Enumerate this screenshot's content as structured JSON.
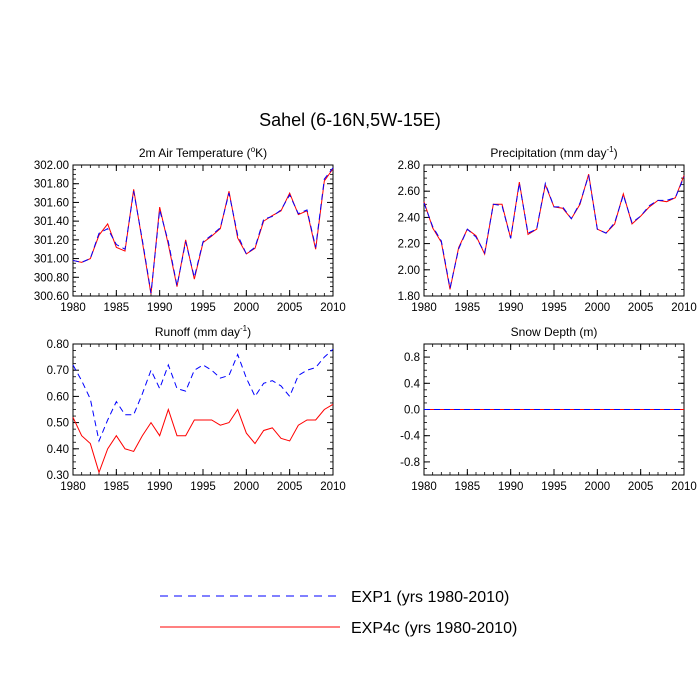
{
  "figure": {
    "title": "Sahel (6-16N,5W-15E)"
  },
  "legend": {
    "placement": "bottom-center",
    "entries": [
      {
        "label": "EXP1 (yrs 1980-2010)",
        "color": "#0000ff",
        "style": "dashed"
      },
      {
        "label": "EXP4c (yrs 1980-2010)",
        "color": "#ff0000",
        "style": "solid"
      }
    ]
  },
  "chart_data": [
    {
      "type": "line",
      "title_main": "2m Air Temperature (",
      "title_sup": "o",
      "title_end": "K)",
      "xlim": [
        1980,
        2010
      ],
      "ylim": [
        300.6,
        302.0
      ],
      "xticks": [
        "1980",
        "1985",
        "1990",
        "1995",
        "2000",
        "2005",
        "2010"
      ],
      "yticks": [
        "300.60",
        "300.80",
        "301.00",
        "301.20",
        "301.40",
        "301.60",
        "301.80",
        "302.00"
      ],
      "x": [
        1980,
        1981,
        1982,
        1983,
        1984,
        1985,
        1986,
        1987,
        1988,
        1989,
        1990,
        1991,
        1992,
        1993,
        1994,
        1995,
        1996,
        1997,
        1998,
        1999,
        2000,
        2001,
        2002,
        2003,
        2004,
        2005,
        2006,
        2007,
        2008,
        2009,
        2010
      ],
      "series": [
        {
          "name": "EXP1 (yrs 1980-2010)",
          "color": "#0000ff",
          "style": "dashed",
          "values": [
            300.98,
            300.96,
            301.0,
            301.27,
            301.32,
            301.15,
            301.1,
            301.72,
            301.2,
            300.63,
            301.52,
            301.18,
            300.71,
            301.18,
            300.8,
            301.18,
            301.25,
            301.33,
            301.7,
            301.25,
            301.05,
            301.12,
            301.42,
            301.45,
            301.52,
            301.68,
            301.48,
            301.52,
            301.12,
            301.85,
            301.97
          ]
        },
        {
          "name": "EXP4c (yrs 1980-2010)",
          "color": "#ff0000",
          "style": "solid",
          "values": [
            300.98,
            300.96,
            301.0,
            301.25,
            301.37,
            301.12,
            301.08,
            301.74,
            301.18,
            300.62,
            301.55,
            301.15,
            300.7,
            301.2,
            300.78,
            301.17,
            301.24,
            301.32,
            301.72,
            301.22,
            301.05,
            301.11,
            301.4,
            301.46,
            301.51,
            301.7,
            301.47,
            301.51,
            301.1,
            301.83,
            301.96
          ]
        }
      ]
    },
    {
      "type": "line",
      "title_main": "Precipitation (mm day",
      "title_sup": "-1",
      "title_end": ")",
      "xlim": [
        1980,
        2010
      ],
      "ylim": [
        1.8,
        2.8
      ],
      "xticks": [
        "1980",
        "1985",
        "1990",
        "1995",
        "2000",
        "2005",
        "2010"
      ],
      "yticks": [
        "1.80",
        "2.00",
        "2.20",
        "2.40",
        "2.60",
        "2.80"
      ],
      "x": [
        1980,
        1981,
        1982,
        1983,
        1984,
        1985,
        1986,
        1987,
        1988,
        1989,
        1990,
        1991,
        1992,
        1993,
        1994,
        1995,
        1996,
        1997,
        1998,
        1999,
        2000,
        2001,
        2002,
        2003,
        2004,
        2005,
        2006,
        2007,
        2008,
        2009,
        2010
      ],
      "series": [
        {
          "name": "EXP1 (yrs 1980-2010)",
          "color": "#0000ff",
          "style": "dashed",
          "values": [
            2.51,
            2.33,
            2.22,
            1.86,
            2.16,
            2.31,
            2.25,
            2.13,
            2.5,
            2.49,
            2.24,
            2.66,
            2.28,
            2.31,
            2.66,
            2.48,
            2.48,
            2.39,
            2.51,
            2.72,
            2.31,
            2.28,
            2.36,
            2.57,
            2.36,
            2.41,
            2.49,
            2.53,
            2.53,
            2.55,
            2.71
          ]
        },
        {
          "name": "EXP4c (yrs 1980-2010)",
          "color": "#ff0000",
          "style": "solid",
          "values": [
            2.52,
            2.32,
            2.21,
            1.85,
            2.17,
            2.31,
            2.26,
            2.12,
            2.5,
            2.5,
            2.24,
            2.67,
            2.27,
            2.31,
            2.65,
            2.48,
            2.47,
            2.39,
            2.5,
            2.73,
            2.31,
            2.28,
            2.35,
            2.58,
            2.35,
            2.41,
            2.48,
            2.53,
            2.52,
            2.55,
            2.72
          ]
        }
      ]
    },
    {
      "type": "line",
      "title_main": "Runoff (mm day",
      "title_sup": "-1",
      "title_end": ")",
      "xlim": [
        1980,
        2010
      ],
      "ylim": [
        0.3,
        0.8
      ],
      "xticks": [
        "1980",
        "1985",
        "1990",
        "1995",
        "2000",
        "2005",
        "2010"
      ],
      "yticks": [
        "0.30",
        "0.40",
        "0.50",
        "0.60",
        "0.70",
        "0.80"
      ],
      "x": [
        1980,
        1981,
        1982,
        1983,
        1984,
        1985,
        1986,
        1987,
        1988,
        1989,
        1990,
        1991,
        1992,
        1993,
        1994,
        1995,
        1996,
        1997,
        1998,
        1999,
        2000,
        2001,
        2002,
        2003,
        2004,
        2005,
        2006,
        2007,
        2008,
        2009,
        2010
      ],
      "series": [
        {
          "name": "EXP1 (yrs 1980-2010)",
          "color": "#0000ff",
          "style": "dashed",
          "values": [
            0.72,
            0.66,
            0.59,
            0.43,
            0.51,
            0.58,
            0.53,
            0.53,
            0.61,
            0.7,
            0.63,
            0.72,
            0.63,
            0.62,
            0.7,
            0.72,
            0.7,
            0.67,
            0.68,
            0.76,
            0.67,
            0.6,
            0.65,
            0.66,
            0.64,
            0.6,
            0.68,
            0.7,
            0.71,
            0.75,
            0.78
          ]
        },
        {
          "name": "EXP4c (yrs 1980-2010)",
          "color": "#ff0000",
          "style": "solid",
          "values": [
            0.52,
            0.45,
            0.42,
            0.31,
            0.4,
            0.45,
            0.4,
            0.39,
            0.45,
            0.5,
            0.45,
            0.55,
            0.45,
            0.45,
            0.51,
            0.51,
            0.51,
            0.49,
            0.5,
            0.55,
            0.46,
            0.42,
            0.47,
            0.48,
            0.44,
            0.43,
            0.49,
            0.51,
            0.51,
            0.55,
            0.57
          ]
        }
      ]
    },
    {
      "type": "line",
      "title_main": "Snow Depth (m)",
      "title_sup": "",
      "title_end": "",
      "xlim": [
        1980,
        2010
      ],
      "ylim": [
        -1.0,
        1.0
      ],
      "xticks": [
        "1980",
        "1985",
        "1990",
        "1995",
        "2000",
        "2005",
        "2010"
      ],
      "yticks": [
        "-0.8",
        "-0.4",
        "0.0",
        "0.4",
        "0.8"
      ],
      "ytick_values": [
        -0.8,
        -0.4,
        0.0,
        0.4,
        0.8
      ],
      "x": [
        1980,
        1981,
        1982,
        1983,
        1984,
        1985,
        1986,
        1987,
        1988,
        1989,
        1990,
        1991,
        1992,
        1993,
        1994,
        1995,
        1996,
        1997,
        1998,
        1999,
        2000,
        2001,
        2002,
        2003,
        2004,
        2005,
        2006,
        2007,
        2008,
        2009,
        2010
      ],
      "series": [
        {
          "name": "EXP1 (yrs 1980-2010)",
          "color": "#0000ff",
          "style": "dashed",
          "values": [
            0,
            0,
            0,
            0,
            0,
            0,
            0,
            0,
            0,
            0,
            0,
            0,
            0,
            0,
            0,
            0,
            0,
            0,
            0,
            0,
            0,
            0,
            0,
            0,
            0,
            0,
            0,
            0,
            0,
            0,
            0
          ]
        },
        {
          "name": "EXP4c (yrs 1980-2010)",
          "color": "#ff0000",
          "style": "solid",
          "values": [
            0,
            0,
            0,
            0,
            0,
            0,
            0,
            0,
            0,
            0,
            0,
            0,
            0,
            0,
            0,
            0,
            0,
            0,
            0,
            0,
            0,
            0,
            0,
            0,
            0,
            0,
            0,
            0,
            0,
            0,
            0
          ]
        }
      ]
    }
  ]
}
